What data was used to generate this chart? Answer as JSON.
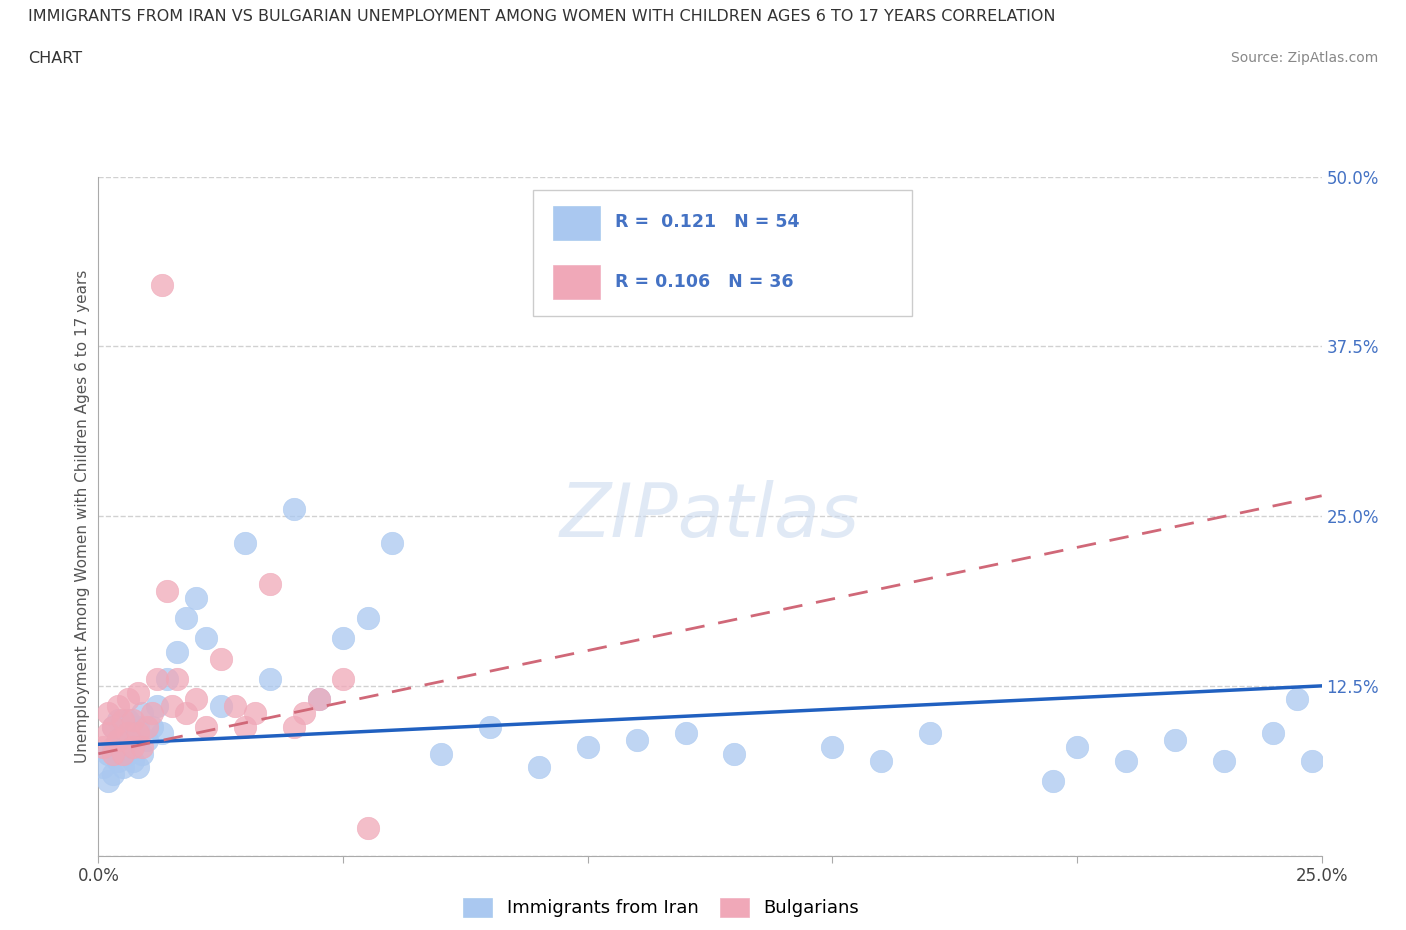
{
  "title_line1": "IMMIGRANTS FROM IRAN VS BULGARIAN UNEMPLOYMENT AMONG WOMEN WITH CHILDREN AGES 6 TO 17 YEARS CORRELATION",
  "title_line2": "CHART",
  "source": "Source: ZipAtlas.com",
  "ylabel": "Unemployment Among Women with Children Ages 6 to 17 years",
  "xlim": [
    0.0,
    0.25
  ],
  "ylim": [
    0.0,
    0.5
  ],
  "series1_color": "#aac8f0",
  "series2_color": "#f0a8b8",
  "trendline1_color": "#2060c0",
  "trendline2_color": "#d06878",
  "iran_x": [
    0.001,
    0.002,
    0.002,
    0.003,
    0.003,
    0.003,
    0.004,
    0.004,
    0.004,
    0.005,
    0.005,
    0.006,
    0.006,
    0.007,
    0.007,
    0.008,
    0.008,
    0.009,
    0.009,
    0.01,
    0.011,
    0.012,
    0.013,
    0.014,
    0.016,
    0.018,
    0.02,
    0.022,
    0.025,
    0.03,
    0.035,
    0.04,
    0.045,
    0.05,
    0.055,
    0.06,
    0.07,
    0.08,
    0.09,
    0.1,
    0.11,
    0.12,
    0.13,
    0.15,
    0.16,
    0.17,
    0.195,
    0.2,
    0.21,
    0.22,
    0.23,
    0.24,
    0.245,
    0.248
  ],
  "iran_y": [
    0.065,
    0.055,
    0.075,
    0.06,
    0.08,
    0.095,
    0.07,
    0.085,
    0.1,
    0.065,
    0.09,
    0.075,
    0.1,
    0.07,
    0.09,
    0.065,
    0.095,
    0.075,
    0.105,
    0.085,
    0.095,
    0.11,
    0.09,
    0.13,
    0.15,
    0.175,
    0.19,
    0.16,
    0.11,
    0.23,
    0.13,
    0.255,
    0.115,
    0.16,
    0.175,
    0.23,
    0.075,
    0.095,
    0.065,
    0.08,
    0.085,
    0.09,
    0.075,
    0.08,
    0.07,
    0.09,
    0.055,
    0.08,
    0.07,
    0.085,
    0.07,
    0.09,
    0.115,
    0.07
  ],
  "bulg_x": [
    0.001,
    0.002,
    0.002,
    0.003,
    0.003,
    0.004,
    0.004,
    0.005,
    0.005,
    0.006,
    0.006,
    0.007,
    0.007,
    0.008,
    0.008,
    0.009,
    0.01,
    0.011,
    0.012,
    0.013,
    0.014,
    0.015,
    0.016,
    0.018,
    0.02,
    0.022,
    0.025,
    0.028,
    0.03,
    0.032,
    0.035,
    0.04,
    0.042,
    0.045,
    0.05,
    0.055
  ],
  "bulg_y": [
    0.08,
    0.09,
    0.105,
    0.075,
    0.095,
    0.085,
    0.11,
    0.075,
    0.1,
    0.09,
    0.115,
    0.08,
    0.1,
    0.09,
    0.12,
    0.08,
    0.095,
    0.105,
    0.13,
    0.42,
    0.195,
    0.11,
    0.13,
    0.105,
    0.115,
    0.095,
    0.145,
    0.11,
    0.095,
    0.105,
    0.2,
    0.095,
    0.105,
    0.115,
    0.13,
    0.02
  ],
  "iran_trend_x0": 0.0,
  "iran_trend_x1": 0.25,
  "iran_trend_y0": 0.082,
  "iran_trend_y1": 0.125,
  "bulg_trend_x0": 0.0,
  "bulg_trend_x1": 0.25,
  "bulg_trend_y0": 0.075,
  "bulg_trend_y1": 0.265
}
